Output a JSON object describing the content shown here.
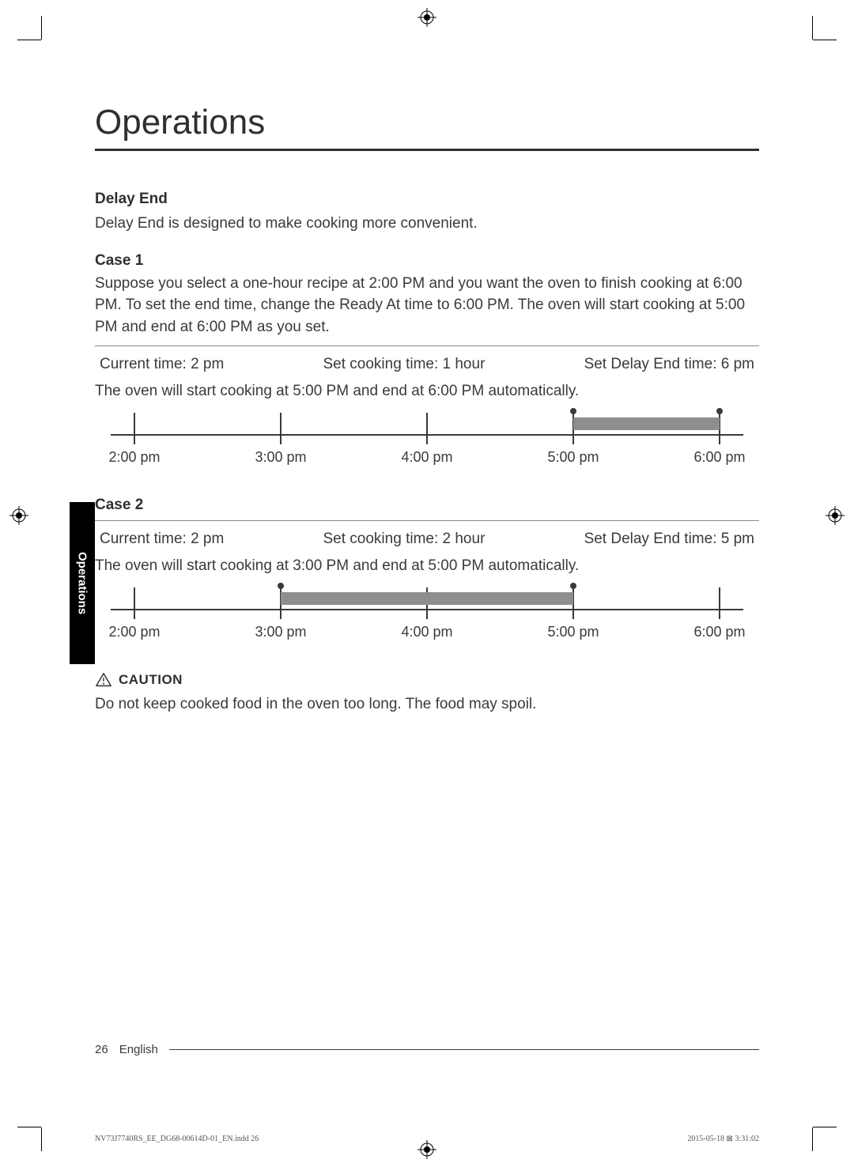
{
  "title": "Operations",
  "sideTab": "Operations",
  "delayEnd": {
    "heading": "Delay End",
    "intro": "Delay End is designed to make cooking more convenient."
  },
  "case1": {
    "heading": "Case 1",
    "desc": "Suppose you select a one-hour recipe at 2:00 PM and you want the oven to finish cooking at 6:00 PM. To set the end time, change the Ready At time to 6:00 PM. The oven will start cooking at 5:00 PM and end at 6:00 PM as you set.",
    "settings": {
      "current": "Current time: 2 pm",
      "cook": "Set cooking time: 1 hour",
      "end": "Set Delay End time: 6 pm"
    },
    "result": "The oven will start cooking at 5:00 PM and end at 6:00 PM automatically.",
    "timeline": {
      "ticks": [
        "2:00 pm",
        "3:00 pm",
        "4:00 pm",
        "5:00 pm",
        "6:00 pm"
      ],
      "barStart": 3,
      "barEnd": 4,
      "dotStart": 3,
      "dotEnd": 4,
      "barColor": "#8e8e8e",
      "lineColor": "#3a3a3a"
    }
  },
  "case2": {
    "heading": "Case 2",
    "settings": {
      "current": "Current time: 2 pm",
      "cook": "Set cooking time: 2 hour",
      "end": "Set Delay End time: 5 pm"
    },
    "result": "The oven will start cooking at 3:00 PM and end at 5:00 PM automatically.",
    "timeline": {
      "ticks": [
        "2:00 pm",
        "3:00 pm",
        "4:00 pm",
        "5:00 pm",
        "6:00 pm"
      ],
      "barStart": 1,
      "barEnd": 3,
      "dotStart": 1,
      "dotEnd": 3,
      "barColor": "#8e8e8e",
      "lineColor": "#3a3a3a"
    }
  },
  "caution": {
    "label": "CAUTION",
    "text": "Do not keep cooked food in the oven too long. The food may spoil."
  },
  "footer": {
    "page": "26",
    "language": "English"
  },
  "printMeta": {
    "file": "NV73J7740RS_EE_DG68-00614D-01_EN.indd   26",
    "stamp": "2015-05-18   ⊠ 3:31:02"
  }
}
